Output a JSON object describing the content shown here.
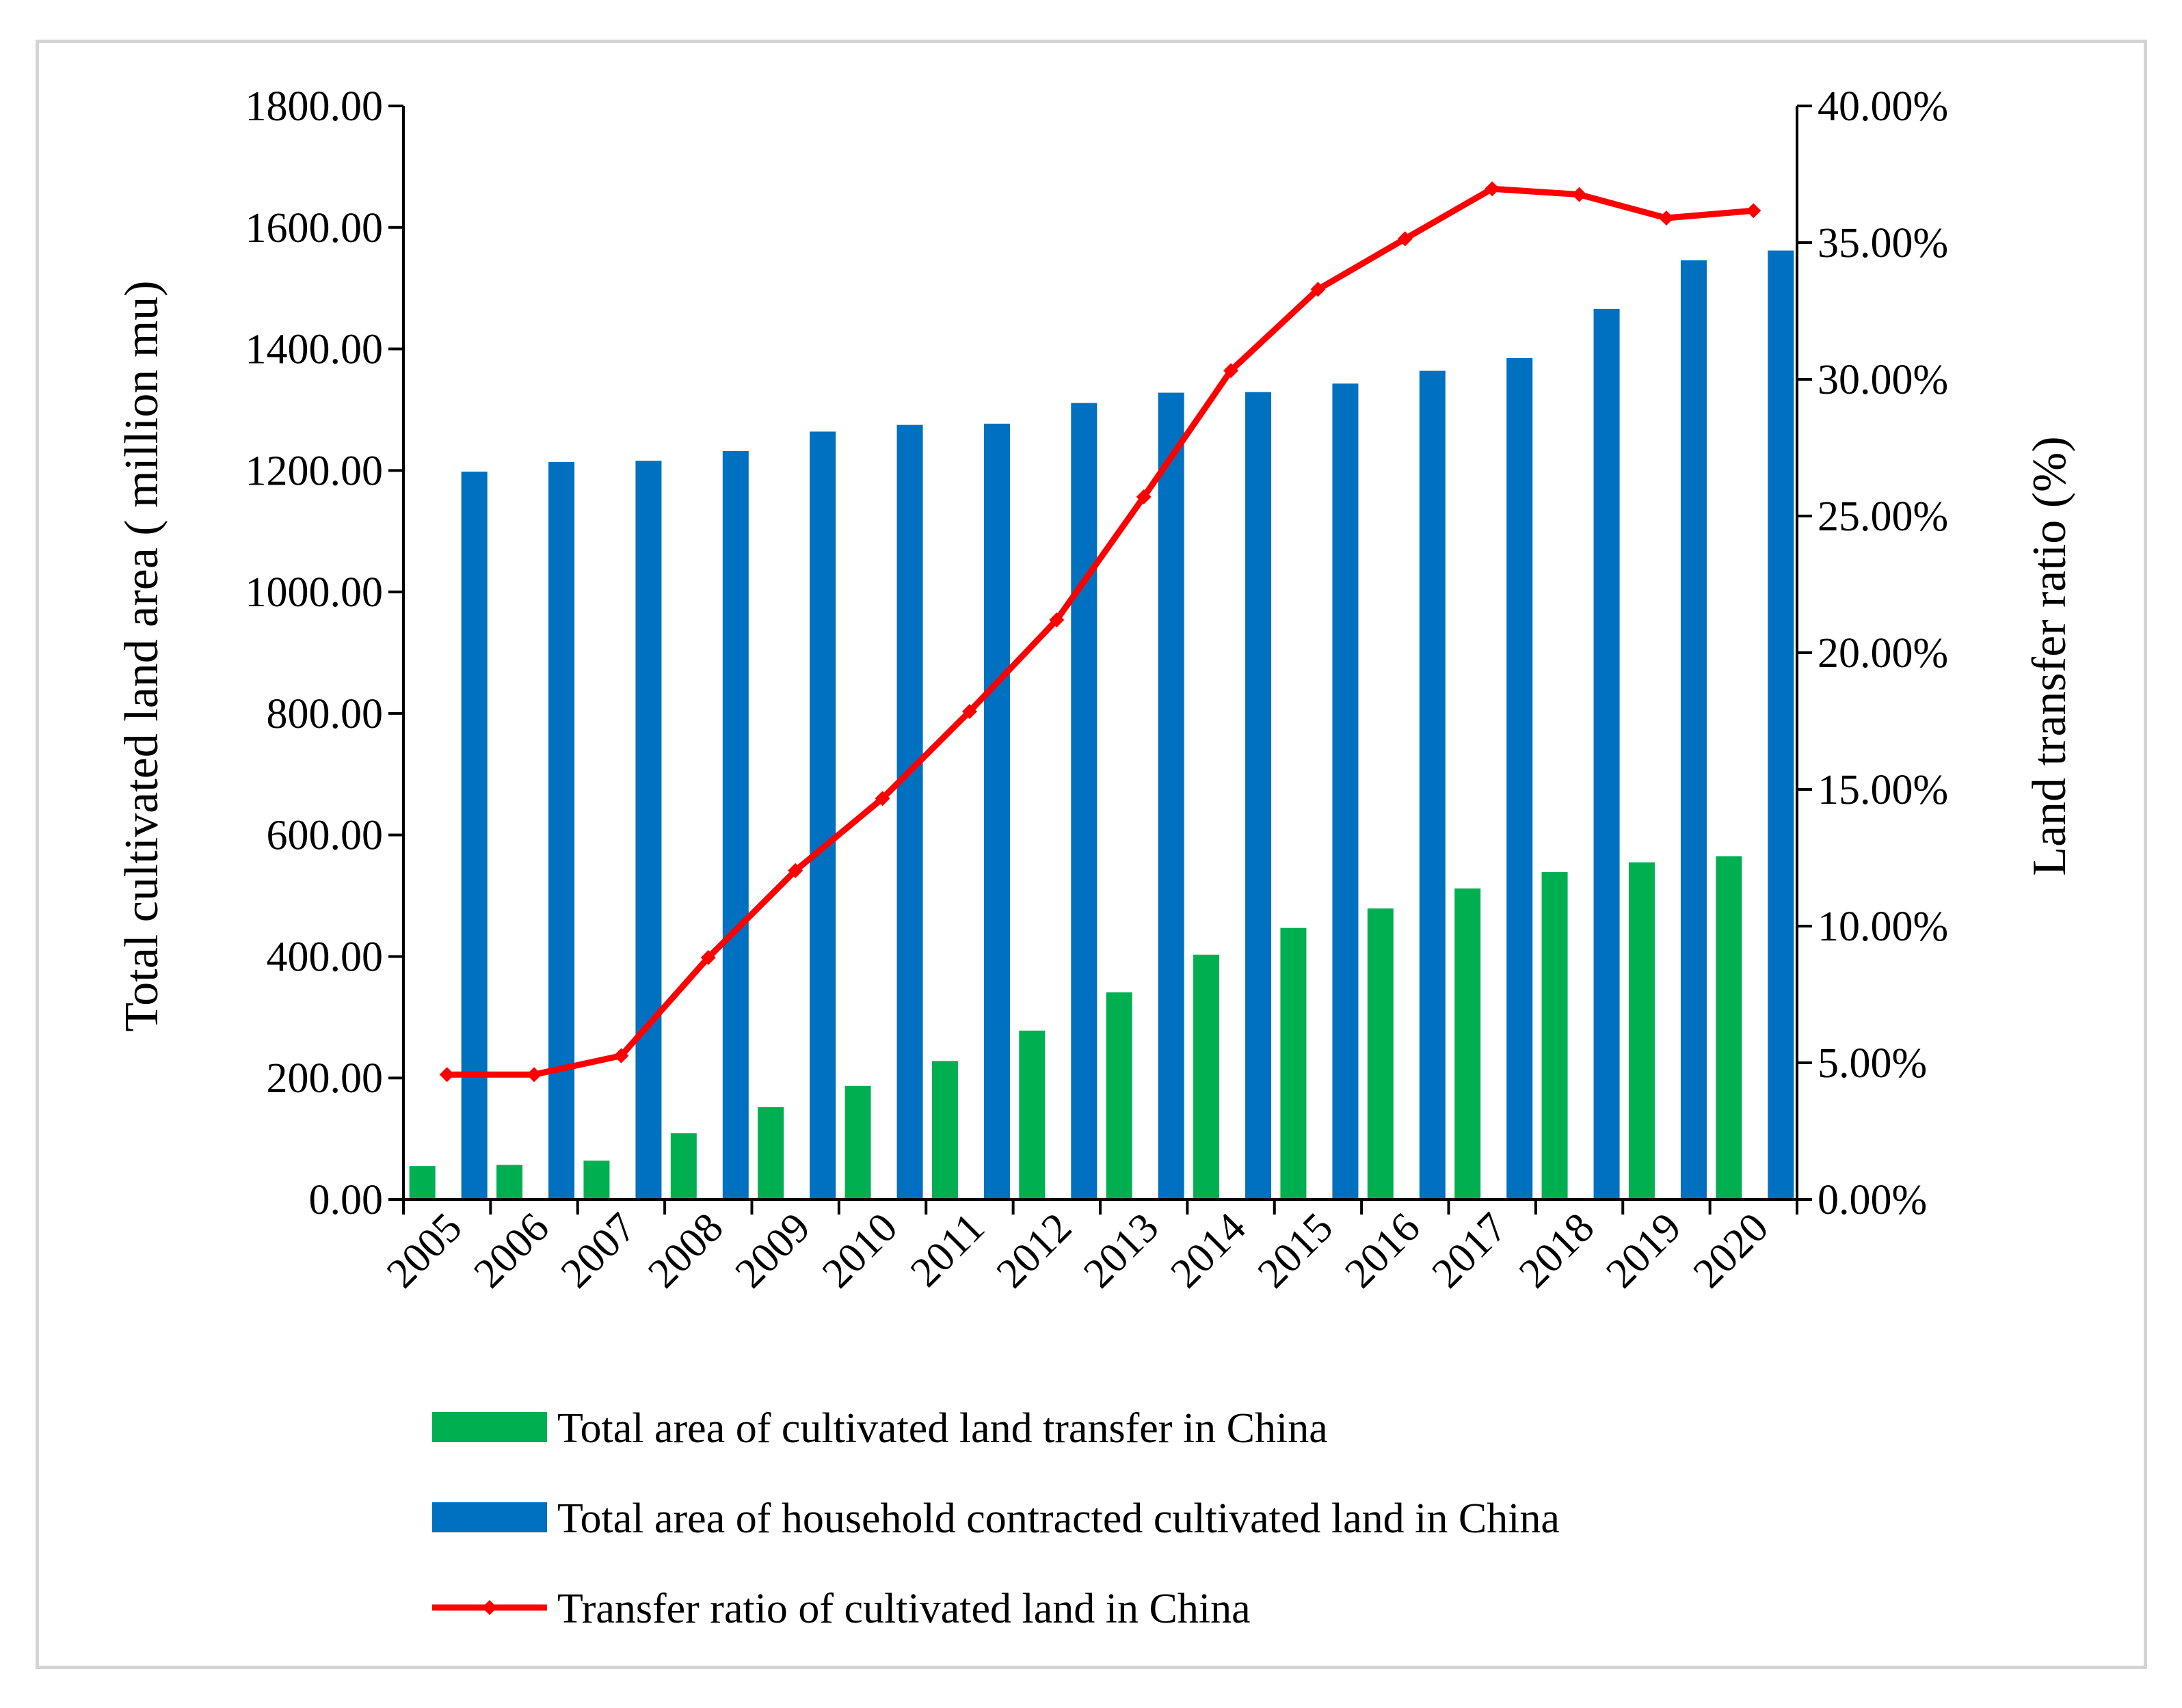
{
  "chart_data": {
    "type": "bar",
    "categories": [
      "2005",
      "2006",
      "2007",
      "2008",
      "2009",
      "2010",
      "2011",
      "2012",
      "2013",
      "2014",
      "2015",
      "2016",
      "2017",
      "2018",
      "2019",
      "2020"
    ],
    "series": [
      {
        "name": "Total area of cultivated land transfer in China",
        "type": "bar",
        "axis": "left",
        "color": "#00b050",
        "values": [
          55,
          57,
          64,
          109,
          152,
          187,
          228,
          278,
          341,
          403,
          447,
          479,
          512,
          539,
          555,
          565
        ]
      },
      {
        "name": "Total area of household contracted cultivated land in China",
        "type": "bar",
        "axis": "left",
        "color": "#0070c0",
        "values": [
          1198,
          1214,
          1216,
          1232,
          1264,
          1275,
          1277,
          1311,
          1328,
          1329,
          1343,
          1364,
          1385,
          1466,
          1546,
          1562
        ]
      },
      {
        "name": "Transfer ratio of cultivated land in China",
        "type": "line",
        "axis": "right",
        "color": "#ff0000",
        "values": [
          4.57,
          4.57,
          5.26,
          8.85,
          12.03,
          14.67,
          17.85,
          21.2,
          25.7,
          30.32,
          33.29,
          35.14,
          36.97,
          36.76,
          35.9,
          36.17
        ]
      }
    ],
    "ylabel": "Total cultivated land area ( million mu)",
    "y2label": "Land transfer ratio (%)",
    "ylim": [
      0,
      1800
    ],
    "y2lim": [
      0,
      40
    ],
    "yticks": [
      "0.00",
      "200.00",
      "400.00",
      "600.00",
      "800.00",
      "1000.00",
      "1200.00",
      "1400.00",
      "1600.00",
      "1800.00"
    ],
    "y2ticks": [
      "0.00%",
      "5.00%",
      "10.00%",
      "15.00%",
      "20.00%",
      "25.00%",
      "30.00%",
      "35.00%",
      "40.00%"
    ],
    "grid": false,
    "legend": "bottom"
  }
}
